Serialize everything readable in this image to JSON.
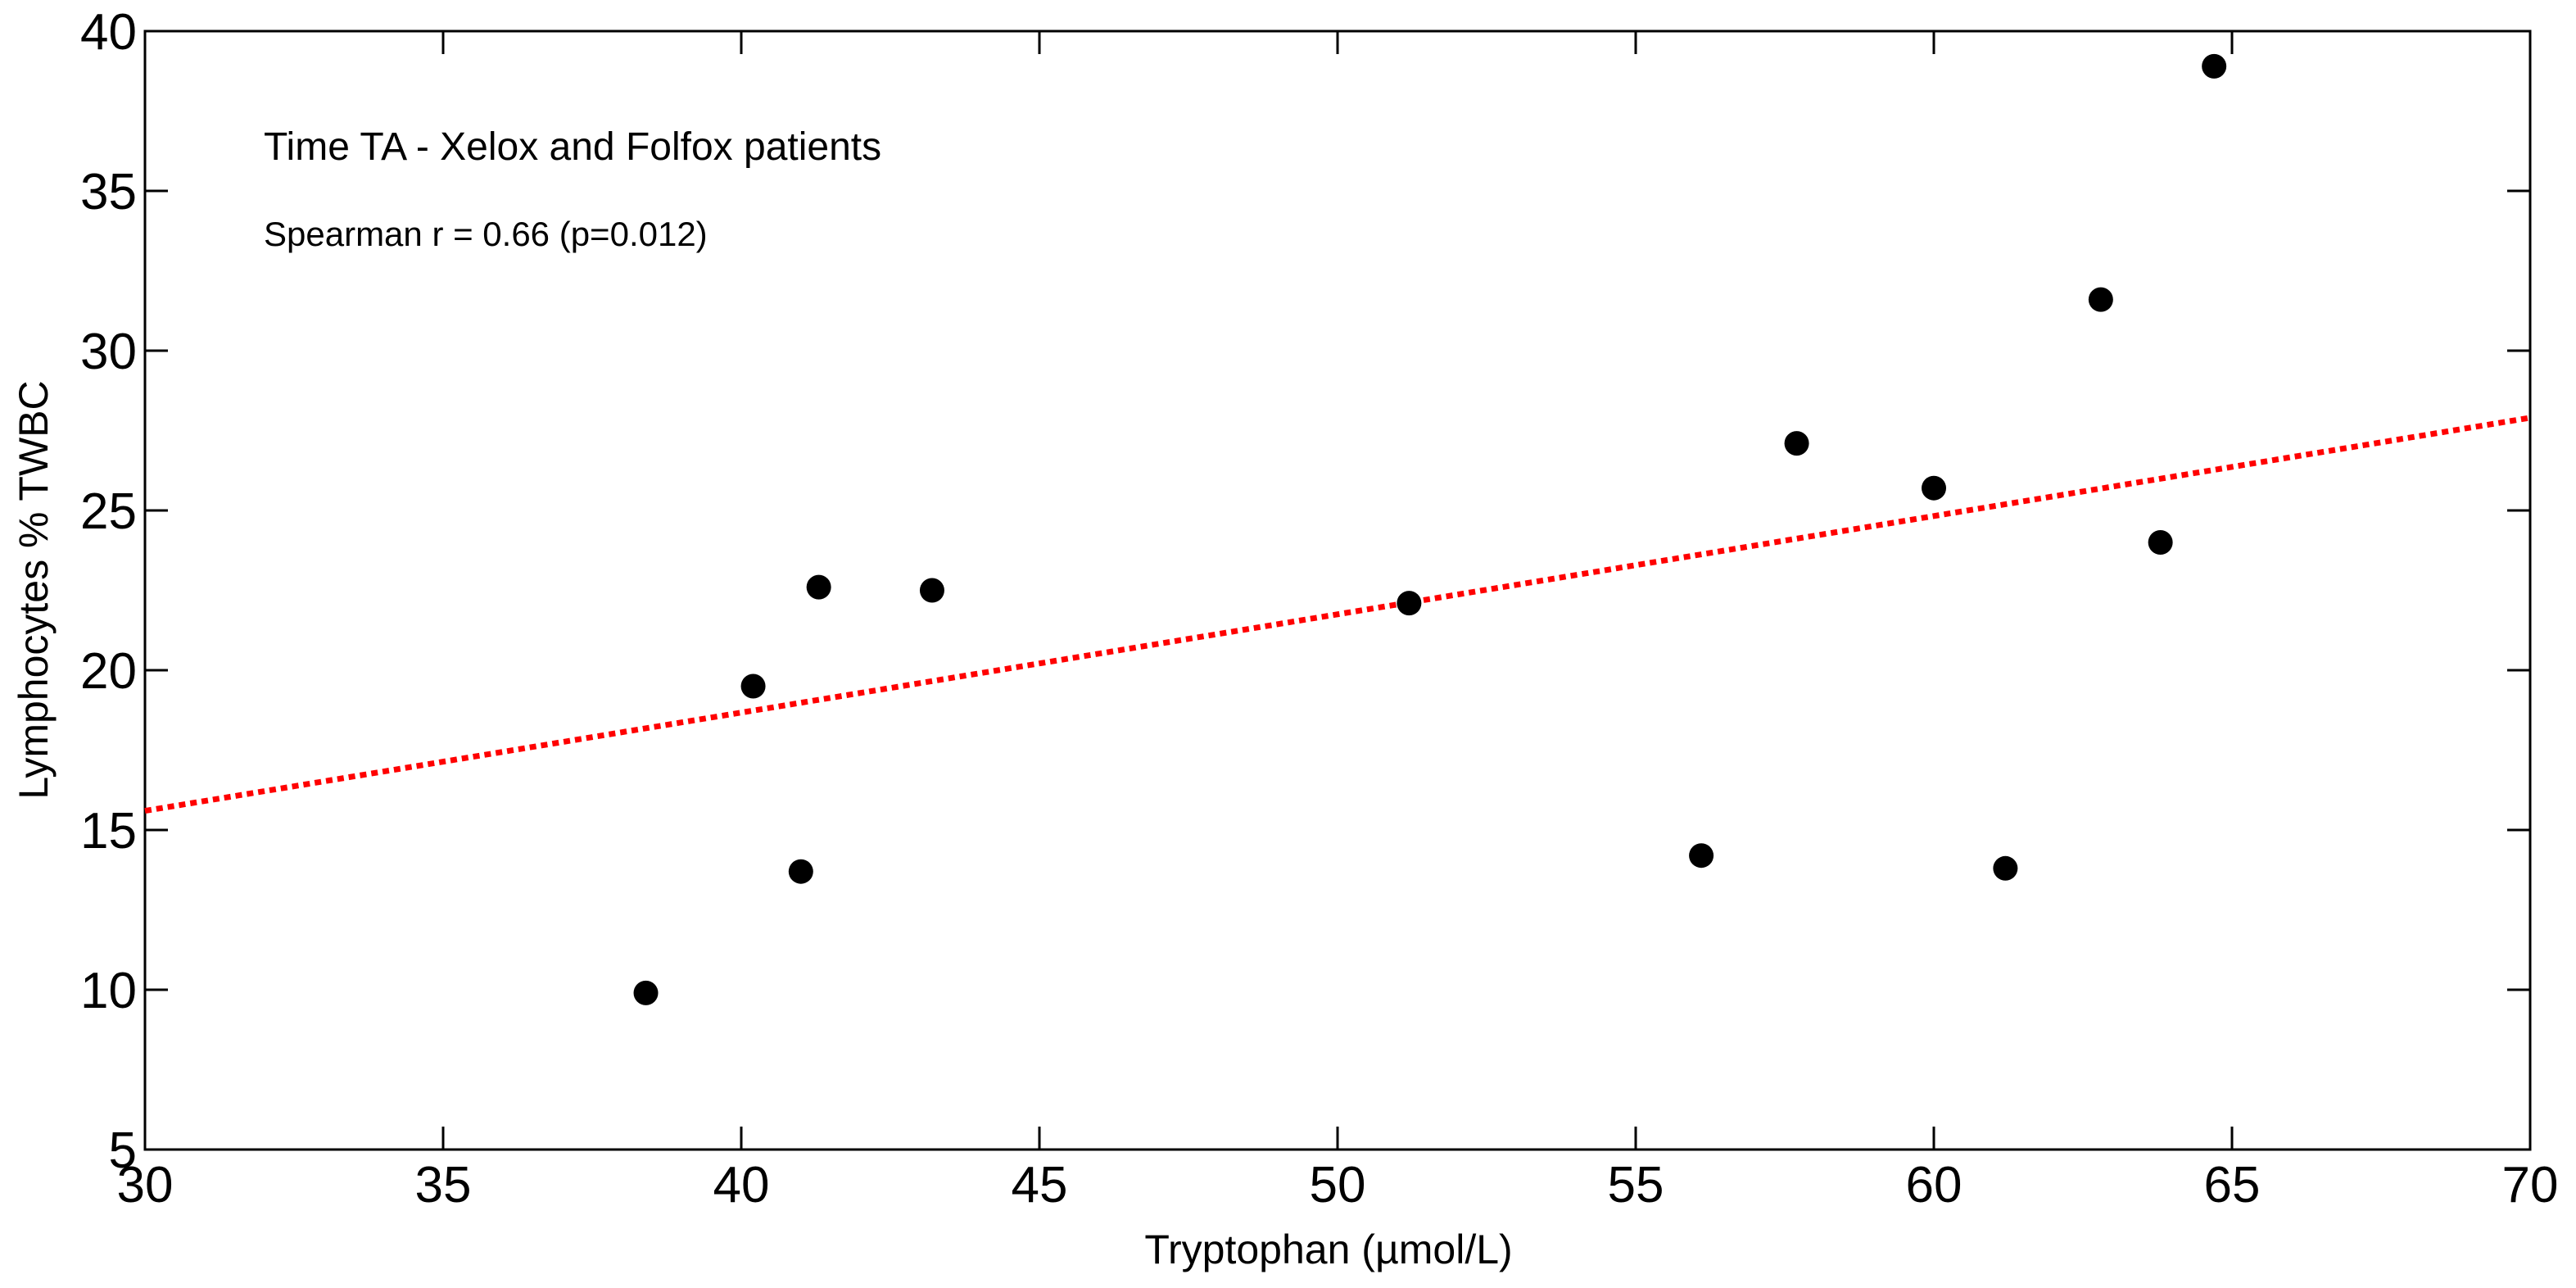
{
  "chart_data": {
    "type": "scatter",
    "title": "Time TA - Xelox and Folfox patients",
    "annotation": "Spearman r = 0.66 (p=0.012)",
    "xlabel": "Tryptophan (µmol/L)",
    "ylabel": "Lymphocytes % TWBC",
    "xlim": [
      30,
      70
    ],
    "ylim": [
      5,
      40
    ],
    "xticks": [
      30,
      35,
      40,
      45,
      50,
      55,
      60,
      65,
      70
    ],
    "yticks": [
      5,
      10,
      15,
      20,
      25,
      30,
      35,
      40
    ],
    "grid": false,
    "points": [
      {
        "x": 38.4,
        "y": 9.9
      },
      {
        "x": 40.2,
        "y": 19.5
      },
      {
        "x": 41.0,
        "y": 13.7
      },
      {
        "x": 41.3,
        "y": 22.6
      },
      {
        "x": 43.2,
        "y": 22.5
      },
      {
        "x": 51.2,
        "y": 22.1
      },
      {
        "x": 56.1,
        "y": 14.2
      },
      {
        "x": 57.7,
        "y": 27.1
      },
      {
        "x": 60.0,
        "y": 25.7
      },
      {
        "x": 61.2,
        "y": 13.8
      },
      {
        "x": 62.8,
        "y": 31.6
      },
      {
        "x": 63.8,
        "y": 24.0
      },
      {
        "x": 64.7,
        "y": 38.9
      }
    ],
    "fit_line": {
      "style": "dotted",
      "color": "#ff0000",
      "x": [
        30,
        70
      ],
      "y": [
        15.6,
        27.9
      ]
    },
    "marker_color": "#000000"
  }
}
